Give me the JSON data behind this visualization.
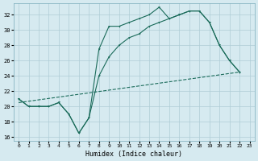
{
  "xlabel": "Humidex (Indice chaleur)",
  "xlim": [
    -0.5,
    23.5
  ],
  "ylim": [
    15.5,
    33.5
  ],
  "yticks": [
    16,
    18,
    20,
    22,
    24,
    26,
    28,
    30,
    32
  ],
  "xticks": [
    0,
    1,
    2,
    3,
    4,
    5,
    6,
    7,
    8,
    9,
    10,
    11,
    12,
    13,
    14,
    15,
    16,
    17,
    18,
    19,
    20,
    21,
    22,
    23
  ],
  "bg_color": "#d6eaf0",
  "line_color": "#1a6b5a",
  "grid_color": "#aecdd6",
  "line1_x": [
    0,
    1,
    2,
    3,
    4,
    5,
    6,
    7,
    8,
    9,
    10,
    11,
    12,
    13,
    14,
    15,
    16,
    17,
    18,
    19,
    20,
    21,
    22
  ],
  "line1_y": [
    21.0,
    20.0,
    20.0,
    20.0,
    20.5,
    19.0,
    16.5,
    18.5,
    27.5,
    30.5,
    30.5,
    31.0,
    31.5,
    32.0,
    33.0,
    31.5,
    32.0,
    32.5,
    32.5,
    31.0,
    28.0,
    26.0,
    24.5
  ],
  "line2_x": [
    0,
    1,
    2,
    3,
    4,
    5,
    6,
    7,
    8,
    9,
    10,
    11,
    12,
    13,
    14,
    15,
    16,
    17,
    18,
    19,
    20,
    21,
    22
  ],
  "line2_y": [
    21.0,
    20.0,
    20.0,
    20.0,
    20.5,
    19.0,
    16.5,
    18.5,
    24.0,
    26.5,
    28.0,
    29.0,
    29.5,
    30.5,
    31.0,
    31.5,
    32.0,
    32.5,
    32.5,
    31.0,
    28.0,
    26.0,
    24.5
  ],
  "line3_x": [
    0,
    22
  ],
  "line3_y": [
    20.5,
    24.5
  ]
}
